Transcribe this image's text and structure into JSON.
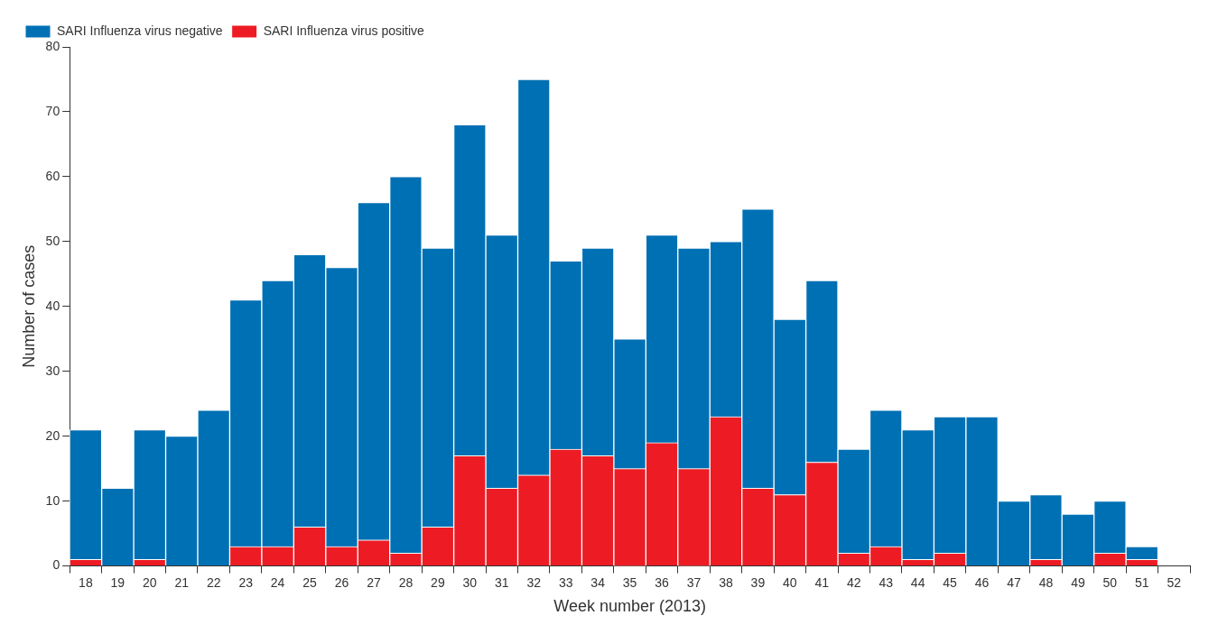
{
  "chart_data": {
    "type": "bar",
    "stacked": true,
    "xlabel": "Week number (2013)",
    "ylabel": "Number of cases",
    "categories": [
      "18",
      "19",
      "20",
      "21",
      "22",
      "23",
      "24",
      "25",
      "26",
      "27",
      "28",
      "29",
      "30",
      "31",
      "32",
      "33",
      "34",
      "35",
      "36",
      "37",
      "38",
      "39",
      "40",
      "41",
      "42",
      "43",
      "44",
      "45",
      "46",
      "47",
      "48",
      "49",
      "50",
      "51",
      "52"
    ],
    "series": [
      {
        "name": "SARI Influenza virus positive",
        "color": "#ed1c24",
        "values": [
          1,
          0,
          1,
          0,
          0,
          3,
          3,
          6,
          3,
          4,
          2,
          6,
          17,
          12,
          14,
          18,
          17,
          15,
          19,
          15,
          23,
          12,
          11,
          16,
          2,
          3,
          1,
          2,
          0,
          0,
          1,
          0,
          2,
          1,
          null
        ]
      },
      {
        "name": "SARI Influenza virus negative",
        "color": "#0070b4",
        "values": [
          20,
          12,
          20,
          20,
          24,
          38,
          41,
          42,
          43,
          52,
          58,
          43,
          51,
          39,
          61,
          29,
          32,
          20,
          32,
          34,
          27,
          43,
          27,
          28,
          16,
          21,
          20,
          21,
          23,
          10,
          10,
          8,
          8,
          2,
          null
        ]
      }
    ],
    "ylim": [
      0,
      80
    ],
    "yticks": [
      0,
      10,
      20,
      30,
      40,
      50,
      60,
      70,
      80
    ],
    "grid": false,
    "legend": "top left"
  }
}
